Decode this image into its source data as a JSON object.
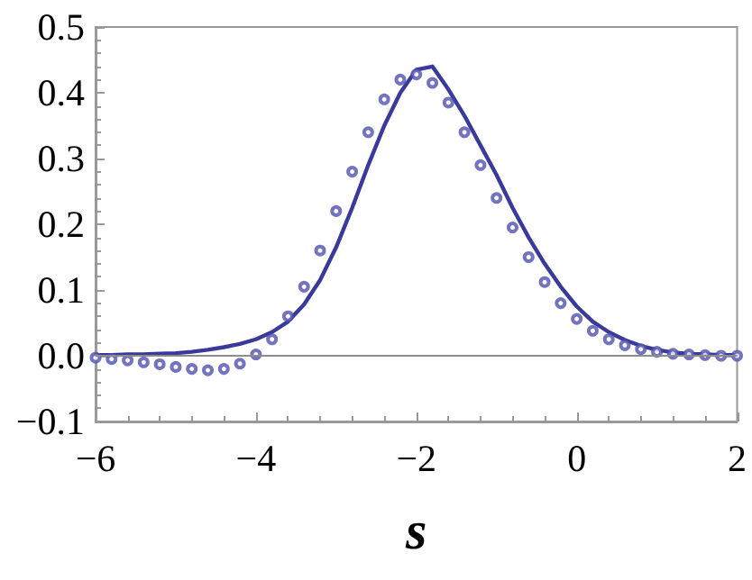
{
  "chart_data": {
    "type": "scatter",
    "xlabel": "s",
    "xlim": [
      -6,
      2
    ],
    "xticks": [
      -6,
      -4,
      -2,
      0,
      2
    ],
    "ylim": [
      -0.1,
      0.5
    ],
    "yticks": [
      -0.1,
      {
        "value": 0,
        "label": "0.0"
      },
      0.1,
      0.2,
      0.3,
      0.4,
      0.5
    ],
    "grid": false,
    "ref_lines": [
      {
        "axis": "y",
        "value": 0,
        "color": "#8c8c8c",
        "line_style": "solid"
      }
    ],
    "series": [
      {
        "type": "line",
        "line_style": "solid",
        "marker": "none",
        "color": "#3a3a9c",
        "x": [
          -6,
          -5.8,
          -5.6,
          -5.4,
          -5.2,
          -5,
          -4.8,
          -4.6,
          -4.4,
          -4.2,
          -4,
          -3.8,
          -3.6,
          -3.4,
          -3.2,
          -3,
          -2.8,
          -2.6,
          -2.4,
          -2.2,
          -2,
          -1.8,
          -1.6,
          -1.4,
          -1.2,
          -1,
          -0.8,
          -0.6,
          -0.4,
          -0.2,
          0,
          0.2,
          0.4,
          0.6,
          0.8,
          1,
          1.2,
          1.4,
          1.6,
          1.8,
          2
        ],
        "values": [
          0.001,
          0.001,
          0.002,
          0.002,
          0.003,
          0.004,
          0.006,
          0.009,
          0.013,
          0.018,
          0.025,
          0.036,
          0.052,
          0.078,
          0.115,
          0.165,
          0.225,
          0.29,
          0.35,
          0.4,
          0.435,
          0.44,
          0.405,
          0.365,
          0.32,
          0.275,
          0.225,
          0.18,
          0.14,
          0.105,
          0.075,
          0.052,
          0.036,
          0.024,
          0.015,
          0.009,
          0.005,
          0.003,
          0.002,
          0.001,
          0.001
        ]
      },
      {
        "marker": "circle",
        "color": "#5050b0",
        "x": [
          -6,
          -5.8,
          -5.6,
          -5.4,
          -5.2,
          -5,
          -4.8,
          -4.6,
          -4.4,
          -4.2,
          -4,
          -3.8,
          -3.6,
          -3.4,
          -3.2,
          -3,
          -2.8,
          -2.6,
          -2.4,
          -2.2,
          -2,
          -1.8,
          -1.6,
          -1.4,
          -1.2,
          -1,
          -0.8,
          -0.6,
          -0.4,
          -0.2,
          0,
          0.2,
          0.4,
          0.6,
          0.8,
          1,
          1.2,
          1.4,
          1.6,
          1.8,
          2
        ],
        "values": [
          -0.003,
          -0.005,
          -0.007,
          -0.01,
          -0.013,
          -0.017,
          -0.02,
          -0.022,
          -0.02,
          -0.012,
          0.002,
          0.025,
          0.06,
          0.105,
          0.16,
          0.22,
          0.28,
          0.34,
          0.39,
          0.42,
          0.428,
          0.415,
          0.385,
          0.34,
          0.29,
          0.24,
          0.195,
          0.15,
          0.112,
          0.08,
          0.056,
          0.038,
          0.025,
          0.016,
          0.01,
          0.006,
          0.003,
          0.002,
          0.001,
          0,
          0
        ]
      }
    ]
  }
}
